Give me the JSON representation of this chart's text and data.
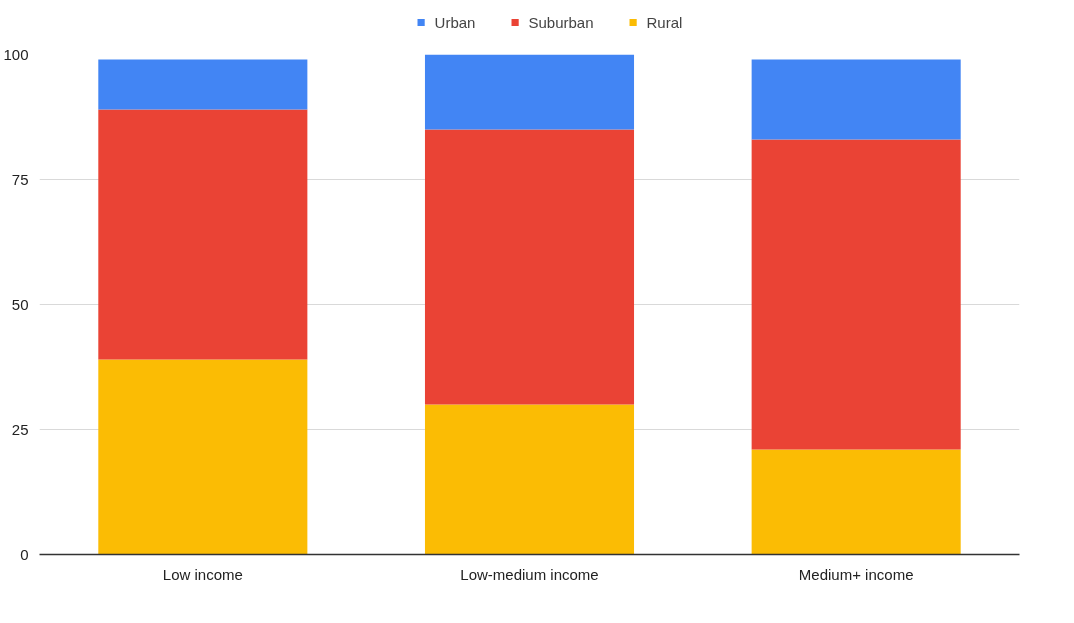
{
  "chart_data": {
    "type": "bar",
    "stacked": true,
    "categories": [
      "Low income",
      "Low-medium income",
      "Medium+ income"
    ],
    "series": [
      {
        "name": "Rural",
        "color": "#fbbc04",
        "values": [
          39,
          30,
          21
        ]
      },
      {
        "name": "Suburban",
        "color": "#ea4335",
        "values": [
          50,
          55,
          62
        ]
      },
      {
        "name": "Urban",
        "color": "#4285f4",
        "values": [
          10,
          15,
          16
        ]
      }
    ],
    "ylim": [
      0,
      100
    ],
    "yticks": [
      0,
      25,
      50,
      75,
      100
    ],
    "grid": "y",
    "legend": "top"
  }
}
